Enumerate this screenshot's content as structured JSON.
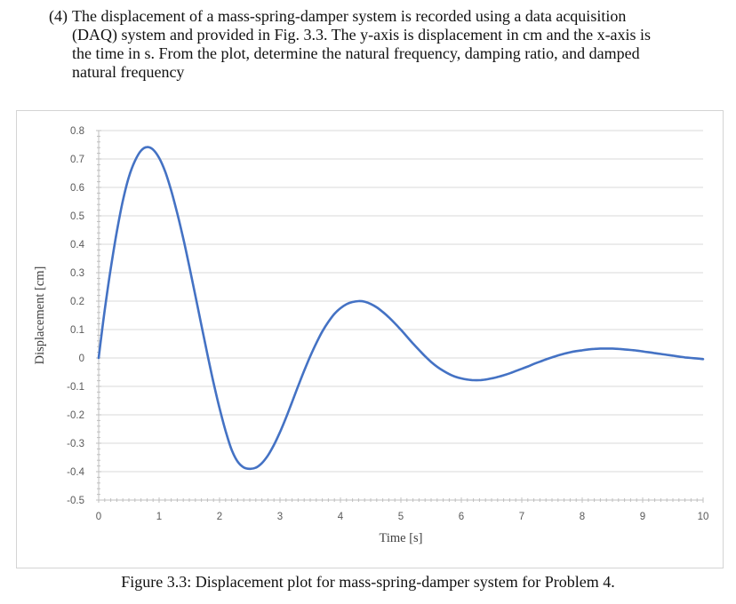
{
  "problem": {
    "number": "(4)",
    "lines": [
      "The displacement of a mass-spring-damper system is recorded using a data acquisition",
      "(DAQ) system and provided in Fig. 3.3. The y-axis is displacement in cm and the x-axis is",
      "the time in s. From the plot, determine the natural frequency, damping ratio, and damped",
      "natural frequency"
    ]
  },
  "caption": "Figure 3.3: Displacement plot for mass-spring-damper system for Problem 4.",
  "chart_data": {
    "type": "line",
    "title": "",
    "xlabel": "Time [s]",
    "ylabel": "Displacement [cm]",
    "xlim": [
      0,
      10
    ],
    "ylim": [
      -0.5,
      0.8
    ],
    "xticks": [
      0,
      1,
      2,
      3,
      4,
      5,
      6,
      7,
      8,
      9,
      10
    ],
    "yticks": [
      0.8,
      0.7,
      0.6,
      0.5,
      0.4,
      0.3,
      0.2,
      0.1,
      0,
      -0.1,
      -0.2,
      -0.3,
      -0.4,
      -0.5
    ],
    "ytick_labels": [
      "0.8",
      "0.7",
      "0.6",
      "0.5",
      "0.4",
      "0.3",
      "0.2",
      "0.1",
      "0",
      "-0.1",
      "-0.2",
      "-0.3",
      "-0.4",
      "-0.5"
    ],
    "grid": true,
    "line_color": "#4472c4",
    "series": [
      {
        "x": [
          0,
          0.1,
          0.2,
          0.3,
          0.4,
          0.5,
          0.6,
          0.7,
          0.8,
          0.9,
          1.0,
          1.1,
          1.2,
          1.3,
          1.4,
          1.5,
          1.6,
          1.7,
          1.8,
          1.9,
          2.0,
          2.1,
          2.2,
          2.3,
          2.4,
          2.5,
          2.6,
          2.7,
          2.8,
          2.9,
          3.0,
          3.1,
          3.2,
          3.3,
          3.4,
          3.5,
          3.6,
          3.7,
          3.8,
          3.9,
          4.0,
          4.1,
          4.2,
          4.3,
          4.4,
          4.5,
          4.6,
          4.7,
          4.8,
          4.9,
          5.0,
          5.1,
          5.2,
          5.3,
          5.4,
          5.5,
          5.6,
          5.7,
          5.8,
          5.9,
          6.0,
          6.1,
          6.2,
          6.3,
          6.4,
          6.5,
          6.6,
          6.7,
          6.8,
          6.9,
          7.0,
          7.1,
          7.2,
          7.3,
          7.4,
          7.5,
          7.6,
          7.7,
          7.8,
          7.9,
          8.0,
          8.1,
          8.2,
          8.3,
          8.4,
          8.5,
          8.6,
          8.7,
          8.8,
          8.9,
          9.0,
          9.1,
          9.2,
          9.3,
          9.4,
          9.5,
          9.6,
          9.7,
          9.8,
          9.9,
          10.0
        ],
        "y": [
          0,
          0.168,
          0.315,
          0.444,
          0.553,
          0.637,
          0.693,
          0.729,
          0.742,
          0.733,
          0.704,
          0.656,
          0.589,
          0.509,
          0.42,
          0.322,
          0.219,
          0.115,
          0.012,
          -0.087,
          -0.177,
          -0.257,
          -0.323,
          -0.365,
          -0.385,
          -0.39,
          -0.386,
          -0.37,
          -0.343,
          -0.306,
          -0.261,
          -0.21,
          -0.155,
          -0.099,
          -0.045,
          0.006,
          0.052,
          0.093,
          0.127,
          0.155,
          0.175,
          0.189,
          0.197,
          0.2,
          0.198,
          0.19,
          0.178,
          0.162,
          0.143,
          0.122,
          0.099,
          0.075,
          0.051,
          0.028,
          0.006,
          -0.014,
          -0.031,
          -0.045,
          -0.057,
          -0.066,
          -0.072,
          -0.076,
          -0.078,
          -0.078,
          -0.076,
          -0.072,
          -0.067,
          -0.061,
          -0.054,
          -0.046,
          -0.038,
          -0.03,
          -0.021,
          -0.013,
          -0.005,
          0.002,
          0.009,
          0.015,
          0.02,
          0.024,
          0.027,
          0.03,
          0.032,
          0.033,
          0.033,
          0.033,
          0.032,
          0.03,
          0.028,
          0.026,
          0.023,
          0.02,
          0.017,
          0.014,
          0.011,
          0.008,
          0.005,
          0.002,
          0.0,
          -0.002,
          -0.004
        ]
      }
    ]
  }
}
